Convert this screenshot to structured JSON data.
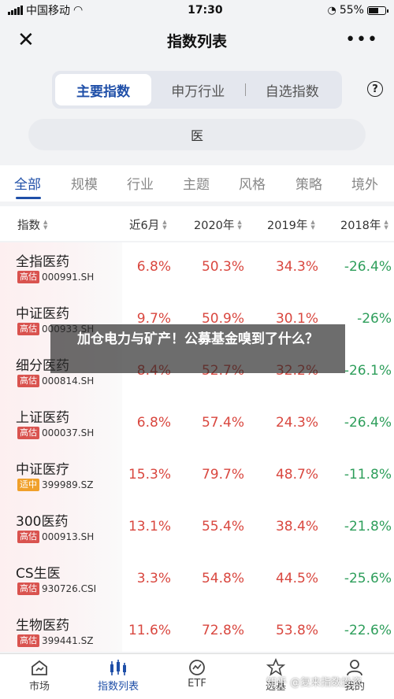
{
  "status_bar": {
    "carrier": "中国移动",
    "time": "17:30",
    "battery": "55%"
  },
  "nav": {
    "title": "指数列表",
    "close_icon": "close-icon",
    "more_icon": "more-icon"
  },
  "segments": [
    {
      "label": "主要指数",
      "active": true
    },
    {
      "label": "申万行业",
      "active": false
    },
    {
      "label": "自选指数",
      "active": false
    }
  ],
  "search": {
    "value": "医"
  },
  "categories": [
    {
      "label": "全部",
      "active": true
    },
    {
      "label": "规模"
    },
    {
      "label": "行业"
    },
    {
      "label": "主题"
    },
    {
      "label": "风格"
    },
    {
      "label": "策略"
    },
    {
      "label": "境外"
    }
  ],
  "table": {
    "headers": [
      "指数",
      "近6月",
      "2020年",
      "2019年",
      "2018年"
    ],
    "rows": [
      {
        "name": "全指医药",
        "badge": "高估",
        "code": "000991.SH",
        "m6": "6.8%",
        "y2020": "50.3%",
        "y2019": "34.3%",
        "y2018": "-26.4%"
      },
      {
        "name": "中证医药",
        "badge": "高估",
        "code": "000933.SH",
        "m6": "9.7%",
        "y2020": "50.9%",
        "y2019": "30.1%",
        "y2018": "-26%"
      },
      {
        "name": "细分医药",
        "badge": "高估",
        "code": "000814.SH",
        "m6": "8.4%",
        "y2020": "52.7%",
        "y2019": "32.2%",
        "y2018": "-26.1%"
      },
      {
        "name": "上证医药",
        "badge": "高估",
        "code": "000037.SH",
        "m6": "6.8%",
        "y2020": "57.4%",
        "y2019": "24.3%",
        "y2018": "-26.4%"
      },
      {
        "name": "中证医疗",
        "badge": "适中",
        "code": "399989.SZ",
        "m6": "15.3%",
        "y2020": "79.7%",
        "y2019": "48.7%",
        "y2018": "-11.8%"
      },
      {
        "name": "300医药",
        "badge": "高估",
        "code": "000913.SH",
        "m6": "13.1%",
        "y2020": "55.4%",
        "y2019": "38.4%",
        "y2018": "-21.8%"
      },
      {
        "name": "CS生医",
        "badge": "高估",
        "code": "930726.CSI",
        "m6": "3.3%",
        "y2020": "54.8%",
        "y2019": "44.5%",
        "y2018": "-25.6%"
      },
      {
        "name": "生物医药",
        "badge": "高估",
        "code": "399441.SZ",
        "m6": "11.6%",
        "y2020": "72.8%",
        "y2019": "53.8%",
        "y2018": "-22.6%"
      }
    ]
  },
  "overlay": {
    "text": "加仓电力与矿产！公募基金嗅到了什么？"
  },
  "tab_bar": [
    {
      "label": "市场",
      "icon": "market-icon",
      "active": false
    },
    {
      "label": "指数列表",
      "icon": "index-list-icon",
      "active": true
    },
    {
      "label": "ETF",
      "icon": "etf-icon",
      "active": false
    },
    {
      "label": "选基",
      "icon": "fund-pick-icon",
      "active": false
    },
    {
      "label": "我的",
      "icon": "profile-icon",
      "active": false
    }
  ],
  "watermark": "知乎 @复来指数投资",
  "colors": {
    "accent": "#1f4fa8",
    "up": "#d9473f",
    "down": "#2e9e5b",
    "badge_high": "#d9534f",
    "badge_mid": "#f0a02a"
  }
}
